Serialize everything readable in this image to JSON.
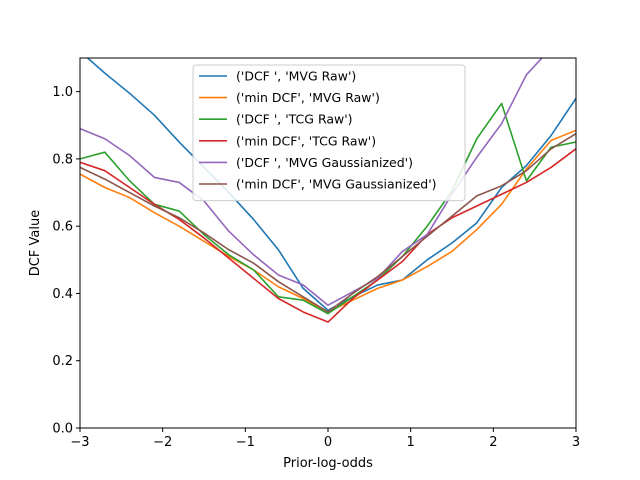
{
  "chart_data": {
    "type": "line",
    "title": "",
    "xlabel": "Prior-log-odds",
    "ylabel": "DCF Value",
    "xlim": [
      -3,
      3
    ],
    "ylim": [
      0,
      1.1
    ],
    "xticks": [
      -3,
      -2,
      -1,
      0,
      1,
      2,
      3
    ],
    "xtick_labels": [
      "−3",
      "−2",
      "−1",
      "0",
      "1",
      "2",
      "3"
    ],
    "yticks": [
      0.0,
      0.2,
      0.4,
      0.6,
      0.8,
      1.0
    ],
    "ytick_labels": [
      "0.0",
      "0.2",
      "0.4",
      "0.6",
      "0.8",
      "1.0"
    ],
    "grid": false,
    "legend_position": "top-center",
    "x": [
      -3,
      -2.7,
      -2.4,
      -2.1,
      -1.8,
      -1.5,
      -1.2,
      -0.9,
      -0.6,
      -0.3,
      0,
      0.3,
      0.6,
      0.9,
      1.2,
      1.5,
      1.8,
      2.1,
      2.4,
      2.7,
      3
    ],
    "series": [
      {
        "name": "('DCF ', 'MVG Raw')",
        "color": "#1f77b4",
        "values": [
          1.12,
          1.055,
          0.995,
          0.93,
          0.85,
          0.775,
          0.7,
          0.62,
          0.53,
          0.415,
          0.35,
          0.39,
          0.425,
          0.44,
          0.5,
          0.55,
          0.61,
          0.715,
          0.78,
          0.87,
          0.98
        ]
      },
      {
        "name": "('min DCF', 'MVG Raw')",
        "color": "#ff7f0e",
        "values": [
          0.755,
          0.715,
          0.685,
          0.64,
          0.6,
          0.555,
          0.51,
          0.47,
          0.42,
          0.385,
          0.345,
          0.38,
          0.415,
          0.44,
          0.48,
          0.525,
          0.59,
          0.665,
          0.77,
          0.855,
          0.885
        ]
      },
      {
        "name": "('DCF ', 'TCG Raw')",
        "color": "#2ca02c",
        "values": [
          0.8,
          0.82,
          0.735,
          0.665,
          0.645,
          0.575,
          0.515,
          0.47,
          0.39,
          0.38,
          0.34,
          0.39,
          0.44,
          0.51,
          0.6,
          0.705,
          0.86,
          0.965,
          0.735,
          0.835,
          0.85
        ]
      },
      {
        "name": "('min DCF', 'TCG Raw')",
        "color": "#d62728",
        "values": [
          0.79,
          0.765,
          0.715,
          0.665,
          0.62,
          0.565,
          0.505,
          0.445,
          0.385,
          0.345,
          0.315,
          0.385,
          0.44,
          0.495,
          0.575,
          0.625,
          0.66,
          0.695,
          0.73,
          0.775,
          0.83
        ]
      },
      {
        "name": "('DCF ', 'MVG Gaussianized')",
        "color": "#9467bd",
        "values": [
          0.89,
          0.86,
          0.81,
          0.745,
          0.73,
          0.675,
          0.585,
          0.515,
          0.455,
          0.425,
          0.365,
          0.405,
          0.445,
          0.525,
          0.575,
          0.695,
          0.805,
          0.905,
          1.05,
          1.13,
          1.17
        ]
      },
      {
        "name": "('min DCF', 'MVG Gaussianized')",
        "color": "#8c564b",
        "values": [
          0.775,
          0.74,
          0.7,
          0.66,
          0.625,
          0.58,
          0.53,
          0.49,
          0.435,
          0.39,
          0.345,
          0.4,
          0.45,
          0.51,
          0.57,
          0.63,
          0.69,
          0.72,
          0.765,
          0.83,
          0.875
        ]
      }
    ]
  }
}
